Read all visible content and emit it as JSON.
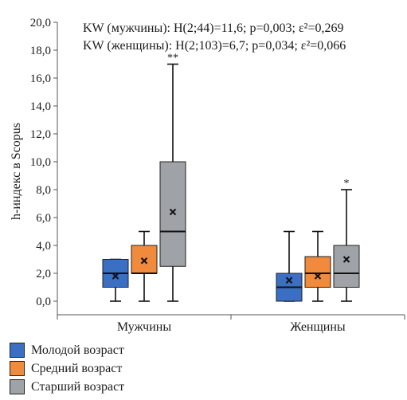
{
  "chart_data": {
    "type": "boxplot",
    "ylabel": "h-индекс в Scopus",
    "ylim": [
      0,
      20
    ],
    "y_ticks": [
      "0,0",
      "2,0",
      "4,0",
      "6,0",
      "8,0",
      "10,0",
      "12,0",
      "14,0",
      "16,0",
      "18,0",
      "20,0"
    ],
    "categories": [
      "Мужчины",
      "Женщины"
    ],
    "annotations": [
      "KW (мужчины): H(2;44)=11,6; p=0,003; ε²=0,269",
      "KW (женщины): H(2;103)=6,7; p=0,034; ε²=0,066"
    ],
    "legend_position": "bottom-left",
    "series": [
      {
        "name": "Молодой возраст",
        "color": "#3a6fc4",
        "boxes": [
          {
            "min": 0,
            "q1": 1,
            "median": 2,
            "q3": 3,
            "max": 3,
            "mean": 1.8,
            "marker": ""
          },
          {
            "min": 0,
            "q1": 0,
            "median": 1,
            "q3": 2,
            "max": 5,
            "mean": 1.5,
            "marker": ""
          }
        ]
      },
      {
        "name": "Средний возраст",
        "color": "#f08a3c",
        "boxes": [
          {
            "min": 0,
            "q1": 2,
            "median": 2,
            "q3": 4,
            "max": 5,
            "mean": 2.9,
            "marker": ""
          },
          {
            "min": 0,
            "q1": 1,
            "median": 2,
            "q3": 3.2,
            "max": 5,
            "mean": 1.8,
            "marker": ""
          }
        ]
      },
      {
        "name": "Старший возраст",
        "color": "#9fa3a7",
        "boxes": [
          {
            "min": 0,
            "q1": 2.5,
            "median": 5,
            "q3": 10,
            "max": 17,
            "mean": 6.4,
            "marker": "**"
          },
          {
            "min": 0,
            "q1": 1,
            "median": 2,
            "q3": 4,
            "max": 8,
            "mean": 3.0,
            "marker": "*"
          }
        ]
      }
    ]
  }
}
